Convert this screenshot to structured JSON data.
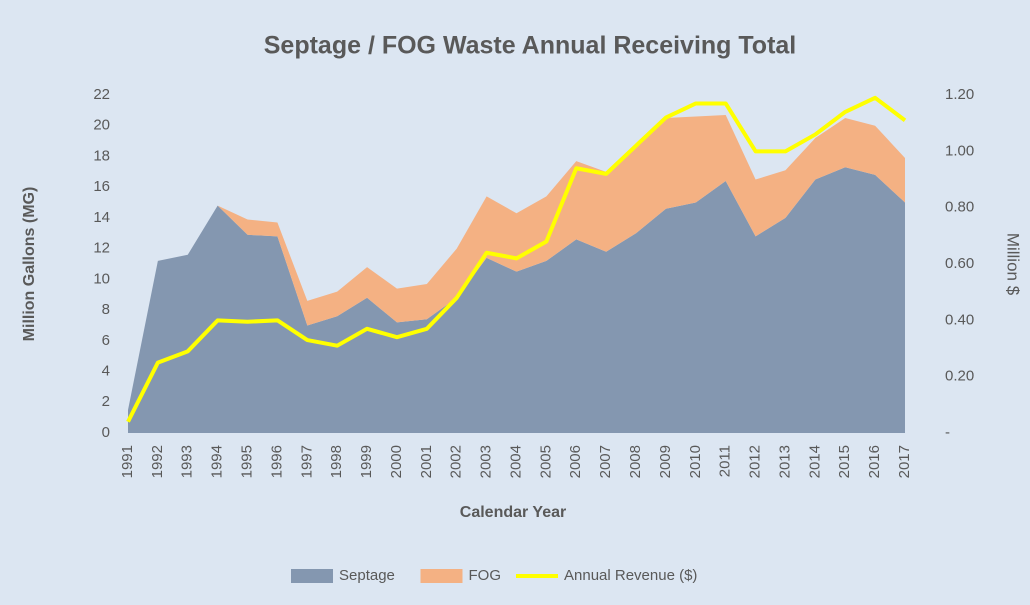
{
  "chart_data": {
    "type": "stacked-area-line",
    "title": "Septage / FOG Waste Annual Receiving Total",
    "x_label": "Calendar Year",
    "y_label": "Million Gallons (MG)",
    "y2_label": "Million $",
    "categories": [
      "1991",
      "1992",
      "1993",
      "1994",
      "1995",
      "1996",
      "1997",
      "1998",
      "1999",
      "2000",
      "2001",
      "2002",
      "2003",
      "2004",
      "2005",
      "2006",
      "2007",
      "2008",
      "2009",
      "2010",
      "2011",
      "2012",
      "2013",
      "2014",
      "2015",
      "2016",
      "2017"
    ],
    "series": [
      {
        "name": "Septage",
        "color": "#8497b0",
        "values": [
          1.5,
          11.2,
          11.6,
          14.8,
          12.9,
          12.8,
          7.0,
          7.6,
          8.8,
          7.2,
          7.4,
          8.8,
          11.4,
          10.5,
          11.2,
          12.6,
          11.8,
          13.0,
          14.6,
          15.0,
          16.4,
          12.8,
          14.0,
          16.5,
          17.3,
          16.8,
          15.0
        ]
      },
      {
        "name": "FOG",
        "color": "#f4b183",
        "values": [
          0,
          0,
          0,
          0,
          1.0,
          0.9,
          1.6,
          1.6,
          2.0,
          2.2,
          2.3,
          3.2,
          4.0,
          3.8,
          4.2,
          5.1,
          5.2,
          5.8,
          5.9,
          5.6,
          4.3,
          3.7,
          3.1,
          2.7,
          3.2,
          3.2,
          2.9
        ]
      },
      {
        "name": "Annual Revenue ($)",
        "color": "#ffff00",
        "axis": "y2",
        "values": [
          0.04,
          0.25,
          0.29,
          0.4,
          0.395,
          0.4,
          0.33,
          0.31,
          0.37,
          0.34,
          0.37,
          0.48,
          0.64,
          0.62,
          0.68,
          0.94,
          0.92,
          1.02,
          1.12,
          1.17,
          1.17,
          1.0,
          1.0,
          1.06,
          1.14,
          1.19,
          1.11
        ]
      }
    ],
    "ylim": [
      0,
      22
    ],
    "yticks": [
      0,
      2,
      4,
      6,
      8,
      10,
      12,
      14,
      16,
      18,
      20,
      22
    ],
    "y2lim": [
      0,
      1.2
    ],
    "y2ticks": [
      {
        "value": 0,
        "label": "-"
      },
      {
        "value": 0.2,
        "label": "0.20"
      },
      {
        "value": 0.4,
        "label": "0.40"
      },
      {
        "value": 0.6,
        "label": "0.60"
      },
      {
        "value": 0.8,
        "label": "0.80"
      },
      {
        "value": 1.0,
        "label": "1.00"
      },
      {
        "value": 1.2,
        "label": "1.20"
      }
    ],
    "legend": "bottom"
  }
}
